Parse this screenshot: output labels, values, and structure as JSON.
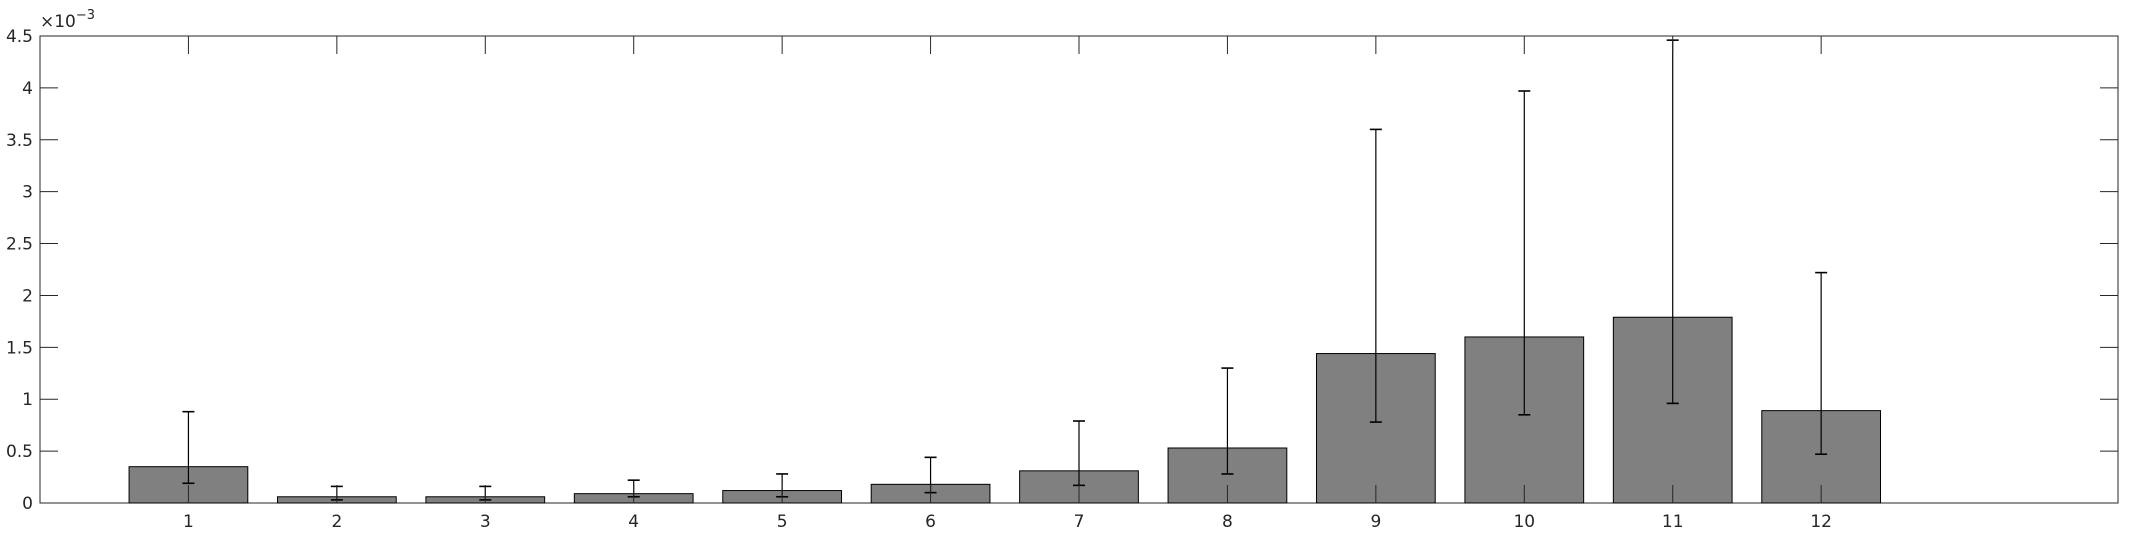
{
  "chart_data": {
    "type": "bar",
    "categories": [
      "1",
      "2",
      "3",
      "4",
      "5",
      "6",
      "7",
      "8",
      "9",
      "10",
      "11",
      "12"
    ],
    "values": [
      0.00035,
      6e-05,
      6e-05,
      9e-05,
      0.00012,
      0.00018,
      0.00031,
      0.00053,
      0.00144,
      0.0016,
      0.00179,
      0.00089
    ],
    "error_low": [
      0.00019,
      3e-05,
      3e-05,
      6e-05,
      6e-05,
      0.0001,
      0.00017,
      0.00028,
      0.00078,
      0.00085,
      0.00096,
      0.00047
    ],
    "error_high": [
      0.00088,
      0.00016,
      0.00016,
      0.00022,
      0.00028,
      0.00044,
      0.00079,
      0.0013,
      0.0036,
      0.00397,
      0.00446,
      0.00222
    ],
    "xlim": [
      0,
      14
    ],
    "ylim": [
      0,
      0.0045
    ],
    "yticks": [
      0,
      0.0005,
      0.001,
      0.0015,
      0.002,
      0.0025,
      0.003,
      0.0035,
      0.004,
      0.0045
    ],
    "ytick_labels": [
      "0",
      "0.5",
      "1",
      "1.5",
      "2",
      "2.5",
      "3",
      "3.5",
      "4",
      "4.5"
    ],
    "y_exponent": "×10",
    "y_exponent_power": "−3",
    "title": "",
    "xlabel": "",
    "ylabel": "",
    "grid": false,
    "bar_color": "#808080",
    "edge_color": "#000000"
  }
}
